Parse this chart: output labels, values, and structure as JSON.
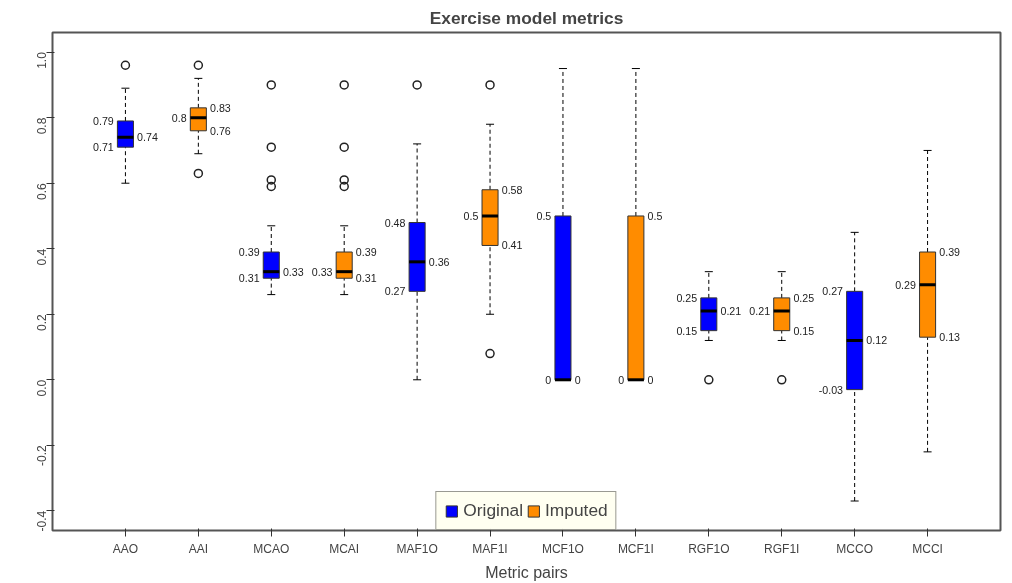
{
  "chart_data": {
    "type": "box",
    "title": "Exercise model metrics",
    "xlabel": "Metric pairs",
    "categories": [
      "AAO",
      "AAI",
      "MCAO",
      "MCAI",
      "MAF1O",
      "MAF1I",
      "MCF1O",
      "MCF1I",
      "RGF1O",
      "RGF1I",
      "MCCO",
      "MCCI"
    ],
    "ylim": [
      -0.46,
      1.06
    ],
    "yticks": [
      -0.4,
      -0.2,
      {
        "value": 0,
        "label": "0.0"
      },
      0.2,
      0.4,
      0.6,
      0.8,
      {
        "value": 1,
        "label": "1.0"
      }
    ],
    "grid": false,
    "legend": "bottom",
    "series": [
      {
        "name": "Original",
        "color": "#0000ff",
        "boxes": [
          {
            "low": 0.6,
            "q1": 0.71,
            "median": 0.74,
            "q3": 0.79,
            "high": 0.89,
            "outliers": [
              0.96
            ]
          },
          null,
          {
            "low": 0.26,
            "q1": 0.31,
            "median": 0.33,
            "q3": 0.39,
            "high": 0.47,
            "outliers": [
              0.9,
              0.71,
              0.61,
              0.59
            ]
          },
          null,
          {
            "low": 0.0,
            "q1": 0.27,
            "median": 0.36,
            "q3": 0.48,
            "high": 0.72,
            "outliers": [
              0.9
            ]
          },
          null,
          {
            "low": 0.0,
            "q1": 0,
            "median": 0,
            "q3": 0.5,
            "high": 0.95
          },
          null,
          {
            "low": 0.12,
            "q1": 0.15,
            "median": 0.21,
            "q3": 0.25,
            "high": 0.33,
            "outliers": [
              0.0
            ]
          },
          null,
          {
            "low": -0.37,
            "q1": -0.03,
            "median": 0.12,
            "q3": 0.27,
            "high": 0.45
          },
          null
        ]
      },
      {
        "name": "Imputed",
        "color": "#ff8c00",
        "boxes": [
          null,
          {
            "low": 0.69,
            "q1": 0.76,
            "median": 0.8,
            "q3": 0.83,
            "high": 0.92,
            "outliers": [
              0.96,
              0.63
            ]
          },
          null,
          {
            "low": 0.26,
            "q1": 0.31,
            "median": 0.33,
            "q3": 0.39,
            "high": 0.47,
            "outliers": [
              0.9,
              0.71,
              0.61,
              0.59
            ]
          },
          null,
          {
            "low": 0.2,
            "q1": 0.41,
            "median": 0.5,
            "q3": 0.58,
            "high": 0.78,
            "outliers": [
              0.9,
              0.08
            ]
          },
          null,
          {
            "low": 0.0,
            "q1": 0,
            "median": 0,
            "q3": 0.5,
            "high": 0.95
          },
          null,
          {
            "low": 0.12,
            "q1": 0.15,
            "median": 0.21,
            "q3": 0.25,
            "high": 0.33,
            "outliers": [
              0.0
            ]
          },
          null,
          {
            "low": -0.22,
            "q1": 0.13,
            "median": 0.29,
            "q3": 0.39,
            "high": 0.7
          }
        ]
      }
    ],
    "annotations": [
      {
        "text": "0.79",
        "x": "AAO",
        "y": 0.79
      },
      {
        "text": "0.71",
        "x": "AAO",
        "y": 0.71
      },
      {
        "text": "0.74",
        "x": "AAO",
        "y": 0.74
      },
      {
        "text": "0.8",
        "x": "AAI",
        "y": 0.8
      },
      {
        "text": "0.83",
        "x": "AAI",
        "y": 0.83
      },
      {
        "text": "0.76",
        "x": "AAI",
        "y": 0.76
      },
      {
        "text": "0.39",
        "x": "MCAO",
        "y": 0.39
      },
      {
        "text": "0.31",
        "x": "MCAO",
        "y": 0.31
      },
      {
        "text": "0.33",
        "x": "MCAO",
        "y": 0.33
      },
      {
        "text": "0.33",
        "x": "MCAI",
        "y": 0.33
      },
      {
        "text": "0.39",
        "x": "MCAI",
        "y": 0.39
      },
      {
        "text": "0.31",
        "x": "MCAI",
        "y": 0.31
      },
      {
        "text": "0.48",
        "x": "MAF1O",
        "y": 0.48
      },
      {
        "text": "0.27",
        "x": "MAF1O",
        "y": 0.27
      },
      {
        "text": "0.36",
        "x": "MAF1O",
        "y": 0.36
      },
      {
        "text": "0.5",
        "x": "MAF1I",
        "y": 0.5
      },
      {
        "text": "0.58",
        "x": "MAF1I",
        "y": 0.58
      },
      {
        "text": "0.41",
        "x": "MAF1I",
        "y": 0.41
      },
      {
        "text": "0.5",
        "x": "MCF1O",
        "y": 0.5
      },
      {
        "text": "0",
        "x": "MCF1O",
        "y": 0
      },
      {
        "text": "0",
        "x": "MCF1O",
        "y": 0
      },
      {
        "text": "0",
        "x": "MCF1I",
        "y": 0
      },
      {
        "text": "0.5",
        "x": "MCF1I",
        "y": 0.5
      },
      {
        "text": "0",
        "x": "MCF1I",
        "y": 0
      },
      {
        "text": "0.25",
        "x": "RGF1O",
        "y": 0.25
      },
      {
        "text": "0.15",
        "x": "RGF1O",
        "y": 0.15
      },
      {
        "text": "0.21",
        "x": "RGF1O",
        "y": 0.21
      },
      {
        "text": "0.21",
        "x": "RGF1I",
        "y": 0.21
      },
      {
        "text": "0.25",
        "x": "RGF1I",
        "y": 0.25
      },
      {
        "text": "0.15",
        "x": "RGF1I",
        "y": 0.15
      },
      {
        "text": "0.27",
        "x": "MCCO",
        "y": 0.27
      },
      {
        "text": "-0.03",
        "x": "MCCO",
        "y": -0.03
      },
      {
        "text": "0.12",
        "x": "MCCO",
        "y": 0.12
      },
      {
        "text": "0.29",
        "x": "MCCI",
        "y": 0.29
      },
      {
        "text": "0.39",
        "x": "MCCI",
        "y": 0.39
      },
      {
        "text": "0.13",
        "x": "MCCI",
        "y": 0.13
      }
    ]
  }
}
